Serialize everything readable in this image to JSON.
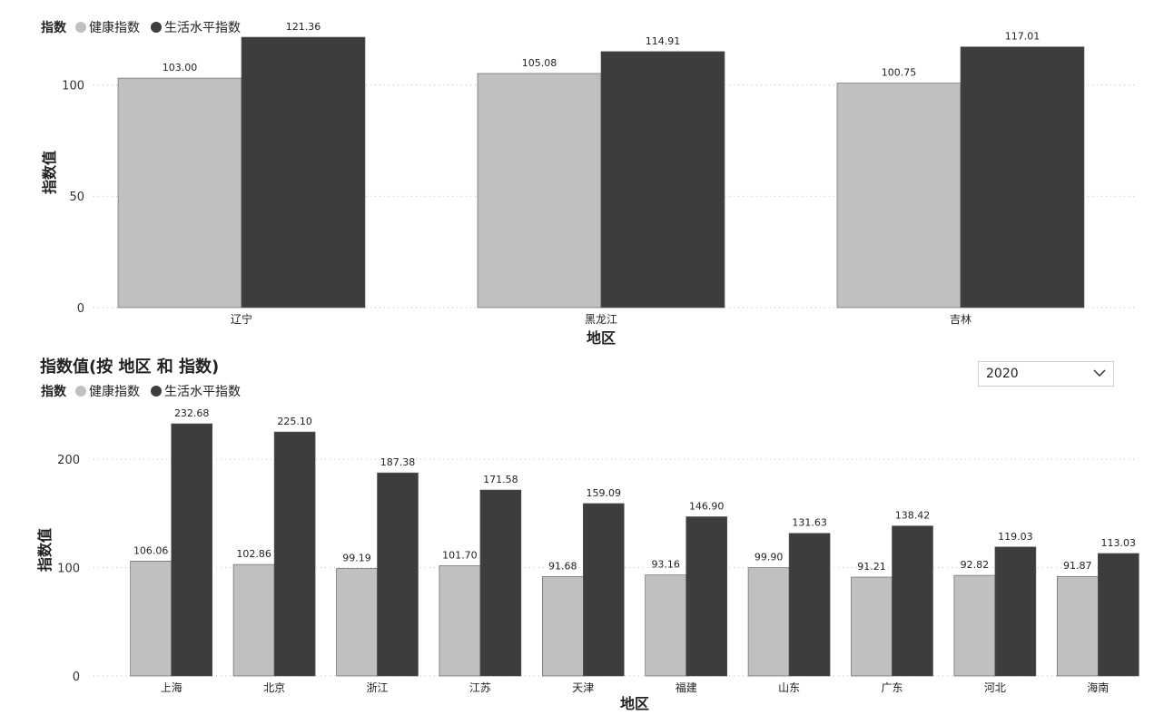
{
  "colors": {
    "health": "#c0c0c0",
    "living": "#3d3d3d",
    "grid": "#bbbbbb",
    "bar_edge": "#555555"
  },
  "top": {
    "legend": {
      "title": "指数",
      "items": [
        "健康指数",
        "生活水平指数"
      ]
    }
  },
  "bottom": {
    "title": "指数值(按 地区 和 指数)",
    "legend": {
      "title": "指数",
      "items": [
        "健康指数",
        "生活水平指数"
      ]
    }
  },
  "filter": {
    "selected": "2020"
  },
  "chart_data": [
    {
      "type": "bar",
      "categories": [
        "辽宁",
        "黑龙江",
        "吉林"
      ],
      "series": [
        {
          "name": "健康指数",
          "values": [
            103.0,
            105.08,
            100.75
          ]
        },
        {
          "name": "生活水平指数",
          "values": [
            121.36,
            114.91,
            117.01
          ]
        }
      ],
      "xlabel": "地区",
      "ylabel": "指数值",
      "ylim": [
        0,
        121.36
      ],
      "yticks": [
        0,
        50,
        100
      ],
      "grid": true,
      "legend": "top-left"
    },
    {
      "type": "bar",
      "title": "指数值(按 地区 和 指数)",
      "categories": [
        "上海",
        "北京",
        "浙江",
        "江苏",
        "天津",
        "福建",
        "山东",
        "广东",
        "河北",
        "海南"
      ],
      "series": [
        {
          "name": "健康指数",
          "values": [
            106.06,
            102.86,
            99.19,
            101.7,
            91.68,
            93.16,
            99.9,
            91.21,
            92.82,
            91.87
          ]
        },
        {
          "name": "生活水平指数",
          "values": [
            232.68,
            225.1,
            187.38,
            171.58,
            159.09,
            146.9,
            131.63,
            138.42,
            119.03,
            113.03
          ]
        }
      ],
      "xlabel": "地区",
      "ylabel": "指数值",
      "ylim": [
        0,
        232.68
      ],
      "yticks": [
        0,
        100,
        200
      ],
      "grid": true,
      "legend": "top-left"
    }
  ]
}
